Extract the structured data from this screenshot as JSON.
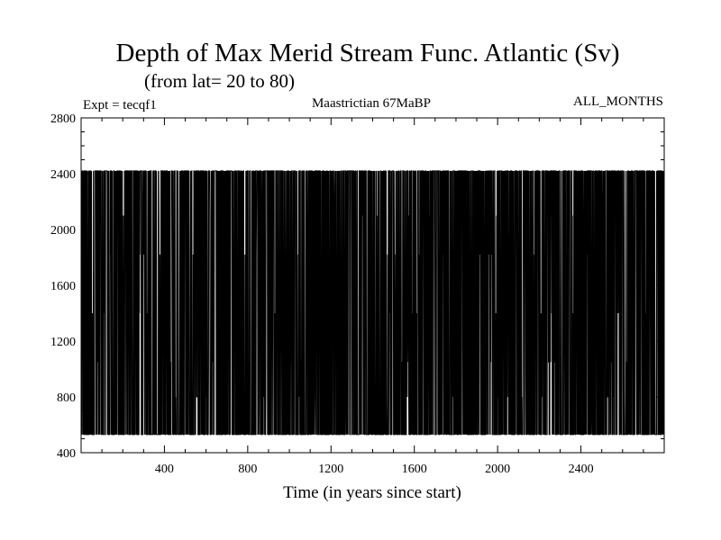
{
  "chart_data": {
    "type": "line",
    "title": "Depth of Max Merid Stream Func. Atlantic (Sv)",
    "subtitle": "(from lat= 20 to 80)",
    "expt_label": "Expt = tecqf1",
    "run_label": "Maastrictian 67MaBP",
    "season_label": "ALL_MONTHS",
    "xlabel": "Time (in years since start)",
    "ylabel": "",
    "xlim": [
      0,
      2800
    ],
    "ylim": [
      400,
      2800
    ],
    "x_ticks": [
      400,
      800,
      1200,
      1600,
      2000,
      2400
    ],
    "y_ticks": [
      400,
      800,
      1200,
      1600,
      2000,
      2400,
      2800
    ],
    "grid": false,
    "series_low": 530,
    "series_high": 2420,
    "series_levels": [
      530,
      800,
      1050,
      1400,
      1820,
      2100,
      2420
    ],
    "color": "#000000"
  }
}
